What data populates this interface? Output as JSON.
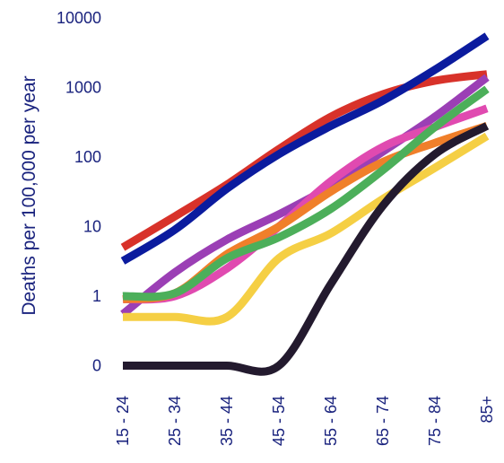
{
  "chart_data": {
    "type": "line",
    "title": "",
    "xlabel": "",
    "ylabel": "Deaths per 100,000 per year",
    "y_scale": "log",
    "y_ticks": [
      "0",
      "1",
      "10",
      "100",
      "1000",
      "10000"
    ],
    "x_ticks": [
      "15 - 24",
      "25 - 34",
      "35 - 44",
      "45 - 54",
      "55 - 64",
      "65 - 74",
      "75 - 84",
      "85+"
    ],
    "grid": false,
    "legend": "none",
    "series": [
      {
        "color": "#d8322a",
        "values": [
          5,
          14,
          40,
          130,
          380,
          800,
          1250,
          1550
        ]
      },
      {
        "color": "#0b1b9e",
        "values": [
          3.2,
          9,
          35,
          110,
          280,
          650,
          1800,
          5500
        ]
      },
      {
        "color": "#9b3fb5",
        "values": [
          0.55,
          2.2,
          6.5,
          15,
          38,
          120,
          380,
          1400
        ]
      },
      {
        "color": "#e04ab0",
        "values": [
          0.9,
          1,
          2.5,
          10,
          45,
          140,
          270,
          500
        ]
      },
      {
        "color": "#f07f2a",
        "values": [
          0.9,
          1.1,
          4,
          10,
          32,
          85,
          160,
          280
        ]
      },
      {
        "color": "#4caf5a",
        "values": [
          1,
          1.1,
          3.5,
          7,
          18,
          65,
          270,
          950
        ]
      },
      {
        "color": "#f5cf44",
        "values": [
          0.5,
          0.5,
          0.5,
          3.5,
          8,
          25,
          70,
          200
        ]
      },
      {
        "color": "#231a2e",
        "values": [
          0.1,
          0.1,
          0.1,
          0.1,
          1.5,
          20,
          110,
          280
        ]
      }
    ]
  }
}
